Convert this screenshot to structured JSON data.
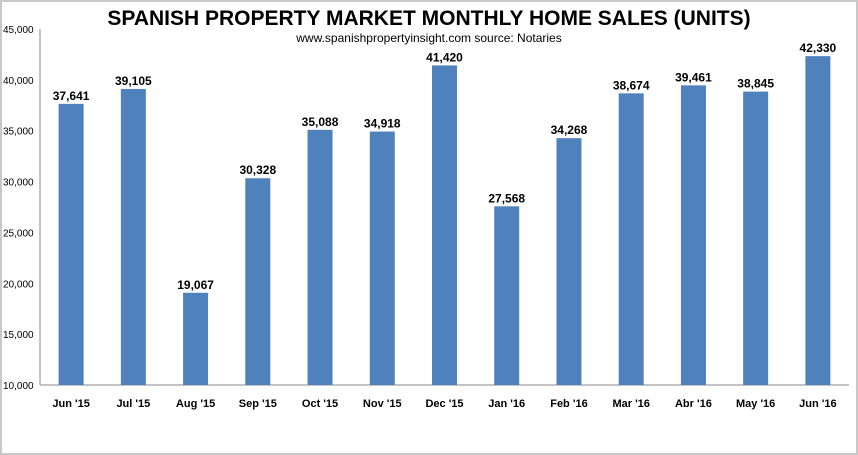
{
  "chart_data": {
    "type": "bar",
    "title": "SPANISH PROPERTY MARKET MONTHLY HOME SALES (UNITS)",
    "subtitle": "www.spanishpropertyinsight.com source: Notaries",
    "xlabel": "",
    "ylabel": "",
    "ylim": [
      10000,
      45000
    ],
    "yticks": [
      "10,000",
      "15,000",
      "20,000",
      "25,000",
      "30,000",
      "35,000",
      "40,000",
      "45,000"
    ],
    "grid": false,
    "bar_color": "#4f81bd",
    "categories": [
      "Jun '15",
      "Jul '15",
      "Aug '15",
      "Sep '15",
      "Oct '15",
      "Nov '15",
      "Dec '15",
      "Jan '16",
      "Feb '16",
      "Mar '16",
      "Abr '16",
      "May '16",
      "Jun '16"
    ],
    "values": [
      37641,
      39105,
      19067,
      30328,
      35088,
      34918,
      41420,
      27568,
      34268,
      38674,
      39461,
      38845,
      42330
    ],
    "data_labels": [
      "37,641",
      "39,105",
      "19,067",
      "30,328",
      "35,088",
      "34,918",
      "41,420",
      "27,568",
      "34,268",
      "38,674",
      "39,461",
      "38,845",
      "42,330"
    ]
  }
}
